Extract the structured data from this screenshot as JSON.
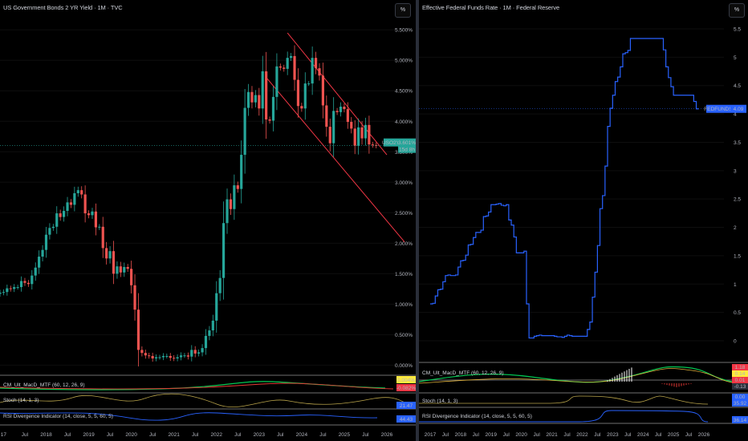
{
  "colors": {
    "up": "#26a69a",
    "down": "#ef5350",
    "channel": "#f23645",
    "line": "#2962ff",
    "macd_green": "#00c853",
    "macd_red": "#e53935",
    "stoch": "#b8a34a",
    "rsi": "#2962ff"
  },
  "left": {
    "title": "US Government Bonds 2 YR Yield · 1M · TVC",
    "unit_button": "%",
    "y_ticks": [
      "5.500%",
      "5.000%",
      "4.500%",
      "4.000%",
      "3.500%",
      "3.000%",
      "2.500%",
      "2.000%",
      "1.500%",
      "1.000%",
      "0.500%",
      "0.000%"
    ],
    "y_tick_values": [
      5.5,
      5.0,
      4.5,
      4.0,
      3.5,
      3.0,
      2.5,
      2.0,
      1.5,
      1.0,
      0.5,
      0.0
    ],
    "price_tag": {
      "symbol": "USO2Y",
      "value": "3.601%",
      "countdown": "15d 8h"
    },
    "x_ticks": [
      "17",
      "Jul",
      "2018",
      "Jul",
      "2019",
      "Jul",
      "2020",
      "Jul",
      "2021",
      "Jul",
      "2022",
      "Jul",
      "2023",
      "Jul",
      "2024",
      "Jul",
      "2025",
      "Jul",
      "2026"
    ],
    "indicators": {
      "macd_label": "CM_Ult_MacD_MTF (60, 12, 26, 9)",
      "macd_values": [
        "0.004%",
        "-0.082%"
      ],
      "stoch_label": "Stoch (14, 1, 3)",
      "stoch_values": [
        "21.47",
        ""
      ],
      "rsi_label": "RSI Divergence Indicator (14, close, 5, 5, 60, 5)",
      "rsi_value": "44.43"
    }
  },
  "right": {
    "title": "Effective Federal Funds Rate · 1M · Federal Reserve",
    "unit_button": "%",
    "y_ticks": [
      "5.5",
      "5",
      "4.5",
      "4",
      "3.5",
      "3",
      "2.5",
      "2",
      "1.5",
      "1",
      "0.5",
      "0"
    ],
    "y_tick_values": [
      5.5,
      5,
      4.5,
      4,
      3.5,
      3,
      2.5,
      2,
      1.5,
      1,
      0.5,
      0
    ],
    "price_tag": {
      "symbol": "FEDFUNDS",
      "value": "4.09"
    },
    "x_ticks": [
      "2017",
      "Jul",
      "2018",
      "Jul",
      "2019",
      "Jul",
      "2020",
      "Jul",
      "2021",
      "Jul",
      "2022",
      "Jul",
      "2023",
      "Jul",
      "2024",
      "Jul",
      "2025",
      "Jul",
      "2026"
    ],
    "indicators": {
      "macd_label": "CM_Ult_MacD_MTF (60, 12, 26, 9)",
      "macd_values": [
        "1.18",
        "0.14",
        "0.01",
        "-0.13"
      ],
      "stoch_label": "Stoch (14, 1, 3)",
      "stoch_values": [
        "0.00",
        "35.92"
      ],
      "rsi_label": "RSI Divergence Indicator (14, close, 5, 5, 60, 5)",
      "rsi_value": "36.14"
    }
  },
  "chart_data": [
    {
      "type": "candlestick",
      "title": "US Government Bonds 2 YR Yield · 1M · TVC",
      "ylim": [
        -0.1,
        5.7
      ],
      "x": [
        "2016-12",
        "2017-01",
        "2017-02",
        "2017-03",
        "2017-04",
        "2017-05",
        "2017-06",
        "2017-07",
        "2017-08",
        "2017-09",
        "2017-10",
        "2017-11",
        "2017-12",
        "2018-01",
        "2018-02",
        "2018-03",
        "2018-04",
        "2018-05",
        "2018-06",
        "2018-07",
        "2018-08",
        "2018-09",
        "2018-10",
        "2018-11",
        "2018-12",
        "2019-01",
        "2019-02",
        "2019-03",
        "2019-04",
        "2019-05",
        "2019-06",
        "2019-07",
        "2019-08",
        "2019-09",
        "2019-10",
        "2019-11",
        "2019-12",
        "2020-01",
        "2020-02",
        "2020-03",
        "2020-04",
        "2020-05",
        "2020-06",
        "2020-07",
        "2020-08",
        "2020-09",
        "2020-10",
        "2020-11",
        "2020-12",
        "2021-01",
        "2021-02",
        "2021-03",
        "2021-04",
        "2021-05",
        "2021-06",
        "2021-07",
        "2021-08",
        "2021-09",
        "2021-10",
        "2021-11",
        "2021-12",
        "2022-01",
        "2022-02",
        "2022-03",
        "2022-04",
        "2022-05",
        "2022-06",
        "2022-07",
        "2022-08",
        "2022-09",
        "2022-10",
        "2022-11",
        "2022-12",
        "2023-01",
        "2023-02",
        "2023-03",
        "2023-04",
        "2023-05",
        "2023-06",
        "2023-07",
        "2023-08",
        "2023-09",
        "2023-10",
        "2023-11",
        "2023-12",
        "2024-01",
        "2024-02",
        "2024-03",
        "2024-04",
        "2024-05",
        "2024-06",
        "2024-07",
        "2024-08",
        "2024-09",
        "2024-10",
        "2024-11",
        "2024-12",
        "2025-01",
        "2025-02",
        "2025-03",
        "2025-04",
        "2025-05",
        "2025-06",
        "2025-07",
        "2025-08",
        "2025-09",
        "2025-10"
      ],
      "close": [
        1.19,
        1.2,
        1.26,
        1.25,
        1.28,
        1.28,
        1.38,
        1.35,
        1.33,
        1.47,
        1.6,
        1.78,
        1.89,
        2.14,
        2.25,
        2.27,
        2.49,
        2.43,
        2.53,
        2.67,
        2.63,
        2.82,
        2.87,
        2.8,
        2.49,
        2.46,
        2.52,
        2.26,
        2.27,
        1.92,
        1.75,
        1.87,
        1.5,
        1.62,
        1.52,
        1.61,
        1.58,
        1.31,
        0.91,
        0.25,
        0.2,
        0.16,
        0.15,
        0.11,
        0.13,
        0.13,
        0.15,
        0.15,
        0.12,
        0.11,
        0.13,
        0.16,
        0.16,
        0.14,
        0.25,
        0.19,
        0.21,
        0.28,
        0.48,
        0.57,
        0.73,
        1.18,
        1.43,
        2.33,
        2.72,
        2.56,
        2.95,
        2.89,
        3.45,
        4.22,
        4.48,
        4.31,
        4.43,
        4.21,
        4.82,
        4.03,
        4.01,
        4.4,
        4.9,
        4.88,
        4.86,
        5.04,
        5.07,
        4.68,
        4.25,
        4.21,
        4.62,
        4.62,
        5.04,
        4.87,
        4.75,
        4.26,
        3.91,
        3.64,
        4.17,
        4.15,
        4.24,
        4.2,
        3.99,
        3.88,
        3.6,
        3.9,
        3.72,
        3.94,
        3.62,
        3.61,
        3.6
      ]
    },
    {
      "type": "line",
      "title": "Effective Federal Funds Rate · 1M · Federal Reserve",
      "ylim": [
        -0.2,
        5.8
      ],
      "series": [
        {
          "name": "FEDFUNDS",
          "x": [
            "2017-01",
            "2017-02",
            "2017-03",
            "2017-04",
            "2017-05",
            "2017-06",
            "2017-07",
            "2017-08",
            "2017-09",
            "2017-10",
            "2017-11",
            "2017-12",
            "2018-01",
            "2018-02",
            "2018-03",
            "2018-04",
            "2018-05",
            "2018-06",
            "2018-07",
            "2018-08",
            "2018-09",
            "2018-10",
            "2018-11",
            "2018-12",
            "2019-01",
            "2019-02",
            "2019-03",
            "2019-04",
            "2019-05",
            "2019-06",
            "2019-07",
            "2019-08",
            "2019-09",
            "2019-10",
            "2019-11",
            "2019-12",
            "2020-01",
            "2020-02",
            "2020-03",
            "2020-04",
            "2020-05",
            "2020-06",
            "2020-07",
            "2020-08",
            "2020-09",
            "2020-10",
            "2020-11",
            "2020-12",
            "2021-01",
            "2021-02",
            "2021-03",
            "2021-04",
            "2021-05",
            "2021-06",
            "2021-07",
            "2021-08",
            "2021-09",
            "2021-10",
            "2021-11",
            "2021-12",
            "2022-01",
            "2022-02",
            "2022-03",
            "2022-04",
            "2022-05",
            "2022-06",
            "2022-07",
            "2022-08",
            "2022-09",
            "2022-10",
            "2022-11",
            "2022-12",
            "2023-01",
            "2023-02",
            "2023-03",
            "2023-04",
            "2023-05",
            "2023-06",
            "2023-07",
            "2023-08",
            "2023-09",
            "2023-10",
            "2023-11",
            "2023-12",
            "2024-01",
            "2024-02",
            "2024-03",
            "2024-04",
            "2024-05",
            "2024-06",
            "2024-07",
            "2024-08",
            "2024-09",
            "2024-10",
            "2024-11",
            "2024-12",
            "2025-01",
            "2025-02",
            "2025-03",
            "2025-04",
            "2025-05",
            "2025-06",
            "2025-07",
            "2025-08",
            "2025-09",
            "2025-10"
          ],
          "values": [
            0.65,
            0.66,
            0.79,
            0.9,
            0.91,
            1.04,
            1.15,
            1.16,
            1.15,
            1.15,
            1.16,
            1.3,
            1.41,
            1.42,
            1.51,
            1.69,
            1.7,
            1.82,
            1.91,
            1.91,
            1.95,
            2.19,
            2.2,
            2.27,
            2.4,
            2.4,
            2.41,
            2.42,
            2.39,
            2.38,
            2.4,
            2.13,
            2.04,
            1.83,
            1.55,
            1.55,
            1.55,
            1.58,
            0.65,
            0.05,
            0.05,
            0.08,
            0.09,
            0.1,
            0.09,
            0.09,
            0.09,
            0.09,
            0.09,
            0.08,
            0.07,
            0.07,
            0.06,
            0.08,
            0.1,
            0.09,
            0.08,
            0.08,
            0.08,
            0.08,
            0.08,
            0.08,
            0.2,
            0.33,
            0.77,
            1.21,
            1.68,
            2.33,
            2.56,
            3.08,
            3.78,
            4.1,
            4.33,
            4.57,
            4.65,
            4.83,
            5.06,
            5.08,
            5.12,
            5.33,
            5.33,
            5.33,
            5.33,
            5.33,
            5.33,
            5.33,
            5.33,
            5.33,
            5.33,
            5.33,
            5.33,
            5.33,
            5.13,
            4.83,
            4.64,
            4.48,
            4.33,
            4.33,
            4.33,
            4.33,
            4.33,
            4.33,
            4.33,
            4.33,
            4.22,
            4.09
          ]
        }
      ]
    }
  ]
}
